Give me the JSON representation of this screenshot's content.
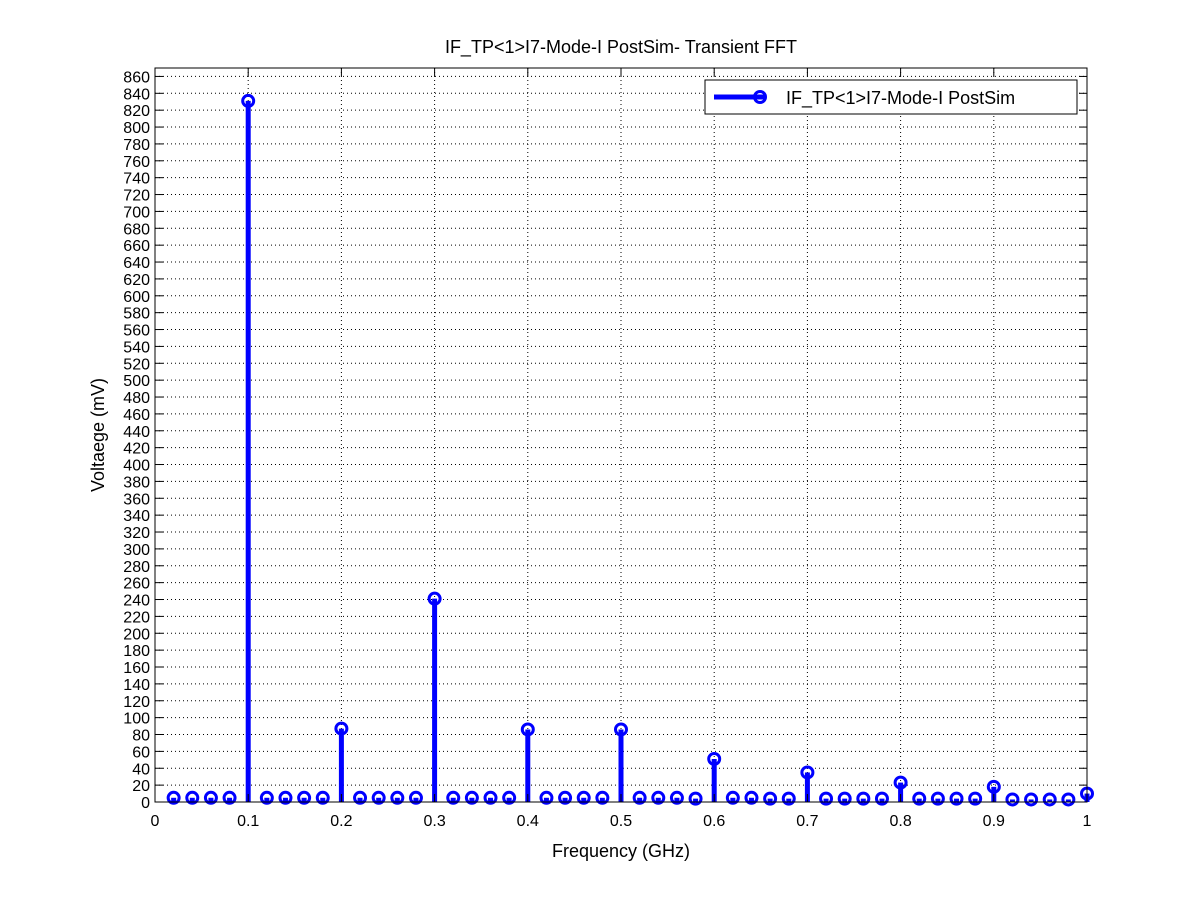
{
  "chart_data": {
    "type": "stem",
    "title": "IF_TP<1>I7-Mode-I PostSim- Transient FFT",
    "xlabel": "Frequency (GHz)",
    "ylabel": "Voltaege (mV)",
    "xlim": [
      0,
      1
    ],
    "ylim": [
      0,
      870
    ],
    "xticks": [
      0,
      0.1,
      0.2,
      0.3,
      0.4,
      0.5,
      0.6,
      0.7,
      0.8,
      0.9,
      1
    ],
    "xtick_labels": [
      "0",
      "0.1",
      "0.2",
      "0.3",
      "0.4",
      "0.5",
      "0.6",
      "0.7",
      "0.8",
      "0.9",
      "1"
    ],
    "yticks": [
      0,
      20,
      40,
      60,
      80,
      100,
      120,
      140,
      160,
      180,
      200,
      220,
      240,
      260,
      280,
      300,
      320,
      340,
      360,
      380,
      400,
      420,
      440,
      460,
      480,
      500,
      520,
      540,
      560,
      580,
      600,
      620,
      640,
      660,
      680,
      700,
      720,
      740,
      760,
      780,
      800,
      820,
      840,
      860
    ],
    "ytick_labels": [
      "0",
      "20",
      "40",
      "60",
      "80",
      "100",
      "120",
      "140",
      "160",
      "180",
      "200",
      "220",
      "240",
      "260",
      "280",
      "300",
      "320",
      "340",
      "360",
      "380",
      "400",
      "420",
      "440",
      "460",
      "480",
      "500",
      "520",
      "540",
      "560",
      "580",
      "600",
      "620",
      "640",
      "660",
      "680",
      "700",
      "720",
      "740",
      "760",
      "780",
      "800",
      "820",
      "840",
      "860"
    ],
    "grid": true,
    "legend_position": "top-right",
    "series": [
      {
        "name": "IF_TP<1>I7-Mode-I PostSim",
        "color": "#0000ff",
        "marker": "circle",
        "x": [
          0.02,
          0.04,
          0.06,
          0.08,
          0.1,
          0.12,
          0.14,
          0.16,
          0.18,
          0.2,
          0.22,
          0.24,
          0.26,
          0.28,
          0.3,
          0.32,
          0.34,
          0.36,
          0.38,
          0.4,
          0.42,
          0.44,
          0.46,
          0.48,
          0.5,
          0.52,
          0.54,
          0.56,
          0.58,
          0.6,
          0.62,
          0.64,
          0.66,
          0.68,
          0.7,
          0.72,
          0.74,
          0.76,
          0.78,
          0.8,
          0.82,
          0.84,
          0.86,
          0.88,
          0.9,
          0.92,
          0.94,
          0.96,
          0.98,
          1.0
        ],
        "y": [
          5,
          5,
          5,
          5,
          831,
          5,
          5,
          5,
          5,
          87,
          5,
          5,
          5,
          5,
          241,
          5,
          5,
          5,
          5,
          86,
          5,
          5,
          5,
          5,
          86,
          5,
          5,
          5,
          4,
          51,
          5,
          5,
          4,
          4,
          35,
          4,
          4,
          4,
          4,
          23,
          4,
          4,
          4,
          4,
          18,
          3,
          3,
          3,
          3,
          10
        ]
      }
    ]
  }
}
